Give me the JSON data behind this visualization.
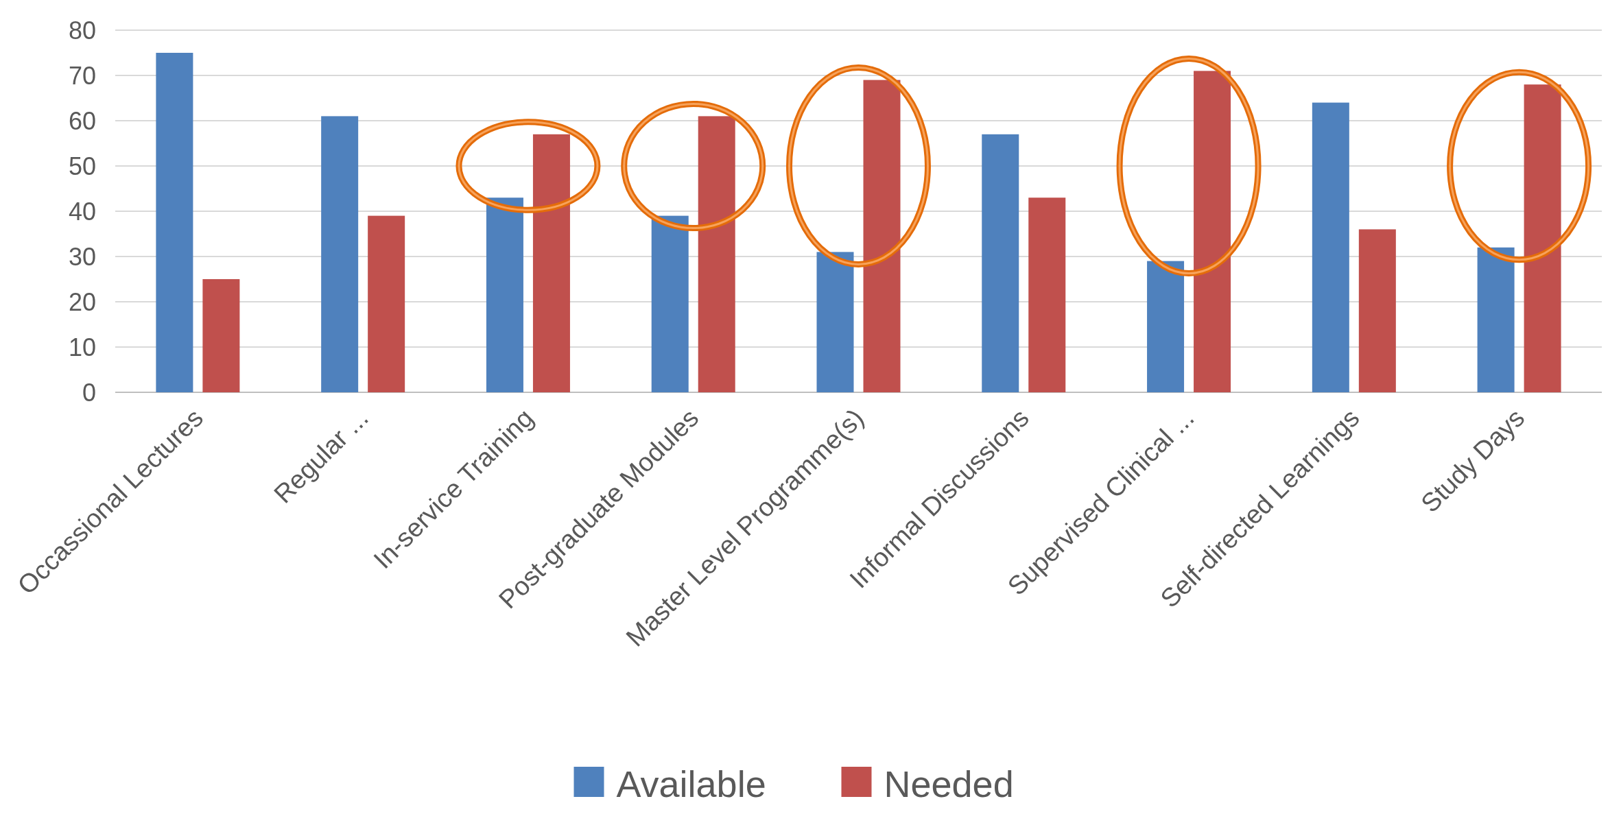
{
  "chart_data": {
    "type": "bar",
    "categories": [
      "Occassional Lectures",
      "Regular ...",
      "In-service Training",
      "Post-graduate Modules",
      "Master Level Programme(s)",
      "Informal Discussions",
      "Supervised Clinical ...",
      "Self-directed Learnings",
      "Study Days"
    ],
    "series": [
      {
        "name": "Available",
        "color": "#4f81bd",
        "values": [
          75,
          61,
          43,
          39,
          31,
          57,
          29,
          64,
          32
        ]
      },
      {
        "name": "Needed",
        "color": "#c0504d",
        "values": [
          25,
          39,
          57,
          61,
          69,
          43,
          71,
          36,
          68
        ]
      }
    ],
    "ylim": [
      0,
      80
    ],
    "yticks": [
      0,
      10,
      20,
      30,
      40,
      50,
      60,
      70,
      80
    ],
    "grid": "y",
    "legend": "bottom"
  }
}
